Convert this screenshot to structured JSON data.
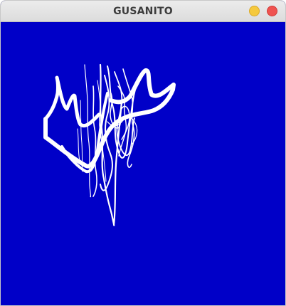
{
  "window": {
    "title": "GUSANITO"
  },
  "titlebar_buttons": {
    "minimize_icon": "minimize-icon",
    "close_icon": "close-icon"
  },
  "colors": {
    "canvas_background": "#0000c8",
    "trail": "#ffffff",
    "minimize": "#f5c93e",
    "close": "#ef5350"
  }
}
